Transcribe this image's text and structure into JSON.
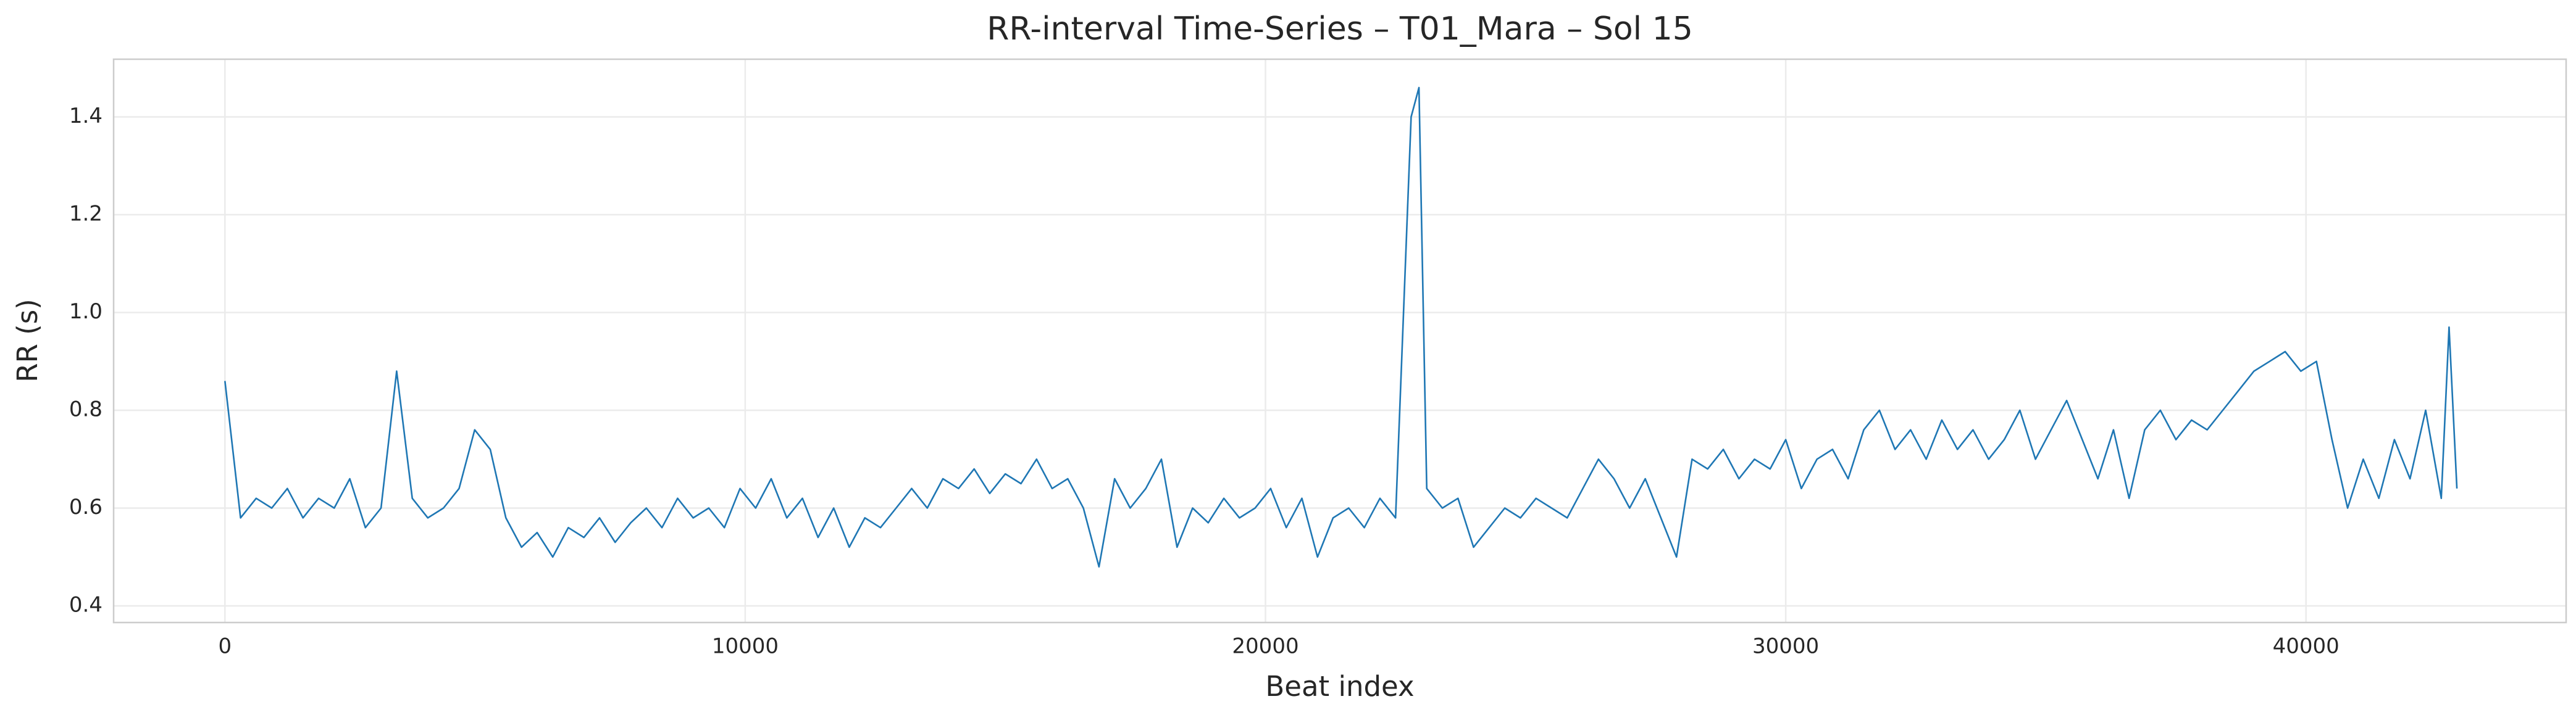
{
  "chart_data": {
    "type": "line",
    "title": "RR-interval Time-Series – T01_Mara – Sol 15",
    "x_label": "Beat index",
    "y_label": "RR (s)",
    "x": [
      0,
      300,
      600,
      900,
      1200,
      1500,
      1800,
      2100,
      2400,
      2700,
      3000,
      3300,
      3600,
      3900,
      4200,
      4500,
      4800,
      5100,
      5400,
      5700,
      6000,
      6300,
      6600,
      6900,
      7200,
      7500,
      7800,
      8100,
      8400,
      8700,
      9000,
      9300,
      9600,
      9900,
      10200,
      10500,
      10800,
      11100,
      11400,
      11700,
      12000,
      12300,
      12600,
      12900,
      13200,
      13500,
      13800,
      14100,
      14400,
      14700,
      15000,
      15300,
      15600,
      15900,
      16200,
      16500,
      16800,
      17100,
      17400,
      17700,
      18000,
      18300,
      18600,
      18900,
      19200,
      19500,
      19800,
      20100,
      20400,
      20700,
      21000,
      21300,
      21600,
      21900,
      22200,
      22500,
      22800,
      22950,
      23100,
      23400,
      23700,
      24000,
      24300,
      24600,
      24900,
      25200,
      25500,
      25800,
      26100,
      26400,
      26700,
      27000,
      27300,
      27600,
      27900,
      28200,
      28500,
      28800,
      29100,
      29400,
      29700,
      30000,
      30300,
      30600,
      30900,
      31200,
      31500,
      31800,
      32100,
      32400,
      32700,
      33000,
      33300,
      33600,
      33900,
      34200,
      34500,
      34800,
      35100,
      35400,
      35700,
      36000,
      36300,
      36600,
      36900,
      37200,
      37500,
      37800,
      38100,
      38400,
      38700,
      39000,
      39300,
      39600,
      39900,
      40200,
      40500,
      40800,
      41100,
      41400,
      41700,
      42000,
      42300,
      42600,
      42750,
      42900
    ],
    "series": [
      {
        "name": "RR",
        "color": "#1f77b4",
        "values": [
          0.86,
          0.58,
          0.62,
          0.6,
          0.64,
          0.58,
          0.62,
          0.6,
          0.66,
          0.56,
          0.6,
          0.88,
          0.62,
          0.58,
          0.6,
          0.64,
          0.76,
          0.72,
          0.58,
          0.52,
          0.55,
          0.5,
          0.56,
          0.54,
          0.58,
          0.53,
          0.57,
          0.6,
          0.56,
          0.62,
          0.58,
          0.6,
          0.56,
          0.64,
          0.6,
          0.66,
          0.58,
          0.62,
          0.54,
          0.6,
          0.52,
          0.58,
          0.56,
          0.6,
          0.64,
          0.6,
          0.66,
          0.64,
          0.68,
          0.63,
          0.67,
          0.65,
          0.7,
          0.64,
          0.66,
          0.6,
          0.48,
          0.66,
          0.6,
          0.64,
          0.7,
          0.52,
          0.6,
          0.57,
          0.62,
          0.58,
          0.6,
          0.64,
          0.56,
          0.62,
          0.5,
          0.58,
          0.6,
          0.56,
          0.62,
          0.58,
          1.4,
          1.46,
          0.64,
          0.6,
          0.62,
          0.52,
          0.56,
          0.6,
          0.58,
          0.62,
          0.6,
          0.58,
          0.64,
          0.7,
          0.66,
          0.6,
          0.66,
          0.58,
          0.5,
          0.7,
          0.68,
          0.72,
          0.66,
          0.7,
          0.68,
          0.74,
          0.64,
          0.7,
          0.72,
          0.66,
          0.76,
          0.8,
          0.72,
          0.76,
          0.7,
          0.78,
          0.72,
          0.76,
          0.7,
          0.74,
          0.8,
          0.7,
          0.76,
          0.82,
          0.74,
          0.66,
          0.76,
          0.62,
          0.76,
          0.8,
          0.74,
          0.78,
          0.76,
          0.8,
          0.84,
          0.88,
          0.9,
          0.92,
          0.88,
          0.9,
          0.74,
          0.6,
          0.7,
          0.62,
          0.74,
          0.66,
          0.8,
          0.62,
          0.97,
          0.64
        ]
      }
    ],
    "xlim": [
      -2140,
      45000
    ],
    "ylim": [
      0.366,
      1.518
    ],
    "xticks": [
      0,
      10000,
      20000,
      30000,
      40000
    ],
    "yticks": [
      0.4,
      0.6,
      0.8,
      {
        "value": 1,
        "label": "1.0"
      },
      1.2,
      1.4
    ],
    "grid": true
  }
}
